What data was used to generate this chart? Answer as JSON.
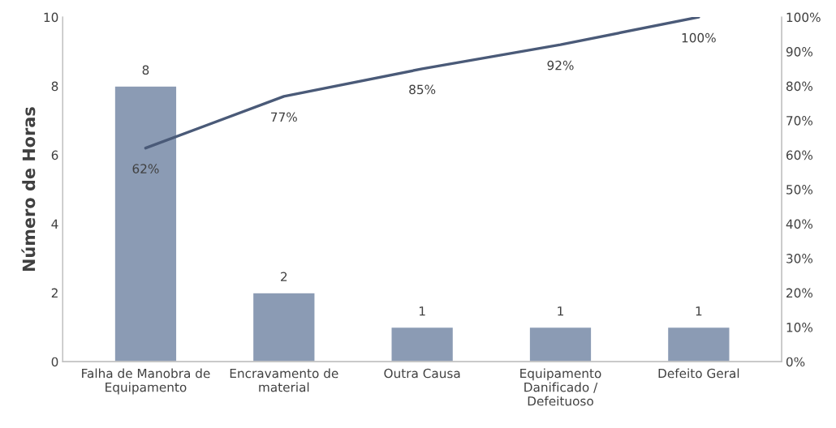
{
  "chart_data": {
    "type": "bar",
    "ylabel": "Número de Horas",
    "categories": [
      "Falha de Manobra de\nEquipamento",
      "Encravamento de\nmaterial",
      "Outra Causa",
      "Equipamento\nDanificado /\nDefeituoso",
      "Defeito Geral"
    ],
    "series": [
      {
        "color": "#8b9bb4",
        "values": [
          8,
          2,
          1,
          1,
          1
        ],
        "value_labels": [
          "8",
          "2",
          "1",
          "1",
          "1"
        ]
      },
      {
        "type": "line",
        "axis": "y2",
        "color": "#4a5a78",
        "values": [
          62,
          77,
          85,
          92,
          100
        ],
        "value_labels": [
          "62%",
          "77%",
          "85%",
          "92%",
          "100%"
        ],
        "marker": "none",
        "line_style": "solid"
      }
    ],
    "ylim": [
      0,
      10
    ],
    "yticks": [
      0,
      2,
      4,
      6,
      8,
      10
    ],
    "y2lim": [
      0,
      100
    ],
    "y2ticks": [
      {
        "value": 0,
        "label": "0%"
      },
      {
        "value": 10,
        "label": "10%"
      },
      {
        "value": 20,
        "label": "20%"
      },
      {
        "value": 30,
        "label": "30%"
      },
      {
        "value": 40,
        "label": "40%"
      },
      {
        "value": 50,
        "label": "50%"
      },
      {
        "value": 60,
        "label": "60%"
      },
      {
        "value": 70,
        "label": "70%"
      },
      {
        "value": 80,
        "label": "80%"
      },
      {
        "value": 90,
        "label": "90%"
      },
      {
        "value": 100,
        "label": "100%"
      }
    ],
    "grid": false,
    "legend": false
  }
}
